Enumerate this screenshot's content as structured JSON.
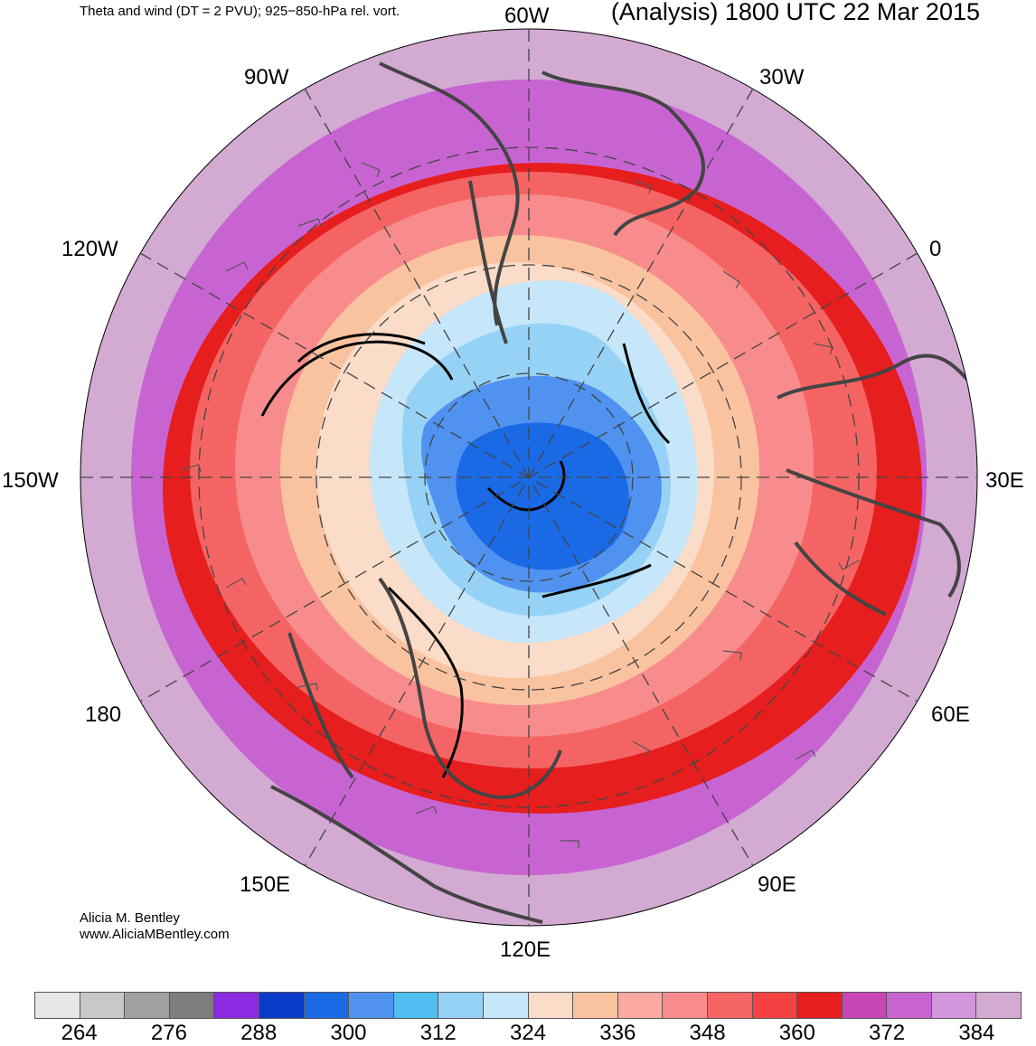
{
  "header": {
    "left_title": "Theta and wind (DT = 2 PVU); 925−850-hPa rel. vort.",
    "right_title": "(Analysis) 1800 UTC 22 Mar 2015"
  },
  "map": {
    "projection": "north-polar-stereographic",
    "longitude_labels": {
      "w60": "60W",
      "w30": "30W",
      "e0": "0",
      "e30": "30E",
      "e60": "60E",
      "e90": "90E",
      "e120": "120E",
      "e150": "150E",
      "e180": "180",
      "w150": "150W",
      "w120": "120W",
      "w90": "90W"
    }
  },
  "credit": {
    "author": "Alicia M. Bentley",
    "website": "www.AliciaMBentley.com"
  },
  "colorbar": {
    "colors": [
      "#e6e6e6",
      "#c8c8c8",
      "#a0a0a0",
      "#7d7d7d",
      "#8a2be2",
      "#0a3ac8",
      "#1a6ae6",
      "#5092f0",
      "#50bef0",
      "#96d2f5",
      "#c6e6fa",
      "#fadcc8",
      "#fac3a0",
      "#faaaa0",
      "#f88c8c",
      "#f56464",
      "#f54141",
      "#e61e1e",
      "#c846b4",
      "#c864d2",
      "#d296dc",
      "#d2aad2"
    ],
    "tick_labels": [
      "264",
      "276",
      "288",
      "300",
      "312",
      "324",
      "336",
      "348",
      "360",
      "372",
      "384"
    ]
  }
}
